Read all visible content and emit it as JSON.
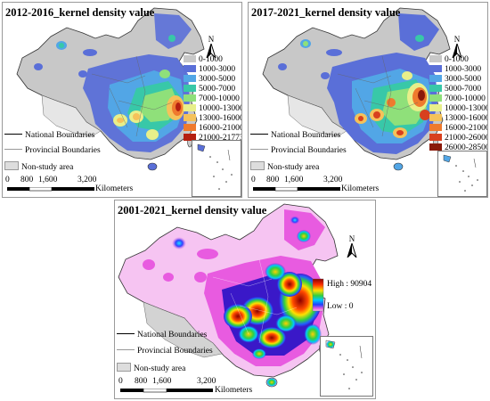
{
  "panels": {
    "p1": {
      "title": "2012-2016_kernel density value",
      "legend": [
        {
          "label": "0-1000",
          "color": "#c8c8c8"
        },
        {
          "label": "1000-3000",
          "color": "#5a6fd8"
        },
        {
          "label": "3000-5000",
          "color": "#52a6e6"
        },
        {
          "label": "5000-7000",
          "color": "#38c8a8"
        },
        {
          "label": "7000-10000",
          "color": "#8fe07a"
        },
        {
          "label": "10000-13000",
          "color": "#e8ef8a"
        },
        {
          "label": "13000-16000",
          "color": "#f5c25a"
        },
        {
          "label": "16000-21000",
          "color": "#ef7a2e"
        },
        {
          "label": "21000-21773",
          "color": "#b51f10"
        }
      ]
    },
    "p2": {
      "title": "2017-2021_kernel density value",
      "legend": [
        {
          "label": "0-1000",
          "color": "#c8c8c8"
        },
        {
          "label": "1000-3000",
          "color": "#5a6fd8"
        },
        {
          "label": "3000-5000",
          "color": "#52a6e6"
        },
        {
          "label": "5000-7000",
          "color": "#38c8a8"
        },
        {
          "label": "7000-10000",
          "color": "#8fe07a"
        },
        {
          "label": "10000-13000",
          "color": "#e8ef8a"
        },
        {
          "label": "13000-16000",
          "color": "#f5c25a"
        },
        {
          "label": "16000-21000",
          "color": "#ef7a2e"
        },
        {
          "label": "21000-26000",
          "color": "#d8401e"
        },
        {
          "label": "26000-28500",
          "color": "#8a1a0a"
        }
      ]
    },
    "p3": {
      "title": "2001-2021_kernel density value",
      "legend_high": "High : 90904",
      "legend_low": "Low : 0"
    }
  },
  "boundaries": {
    "national": "National Boundaries",
    "provincial": "Provincial Boundaries",
    "nonstudy": "Non-study area"
  },
  "scale": {
    "t0": "0",
    "t1": "800",
    "t2": "1,600",
    "t3": "3,200",
    "unit": "Kilometers"
  },
  "north_label": "N",
  "colors": {
    "nonstudy": "#d3d3d3",
    "gray_density": "#c8c8c8",
    "blue": "#5a6fd8",
    "magenta": "#e85be0",
    "light_magenta": "#f6c4f2"
  }
}
